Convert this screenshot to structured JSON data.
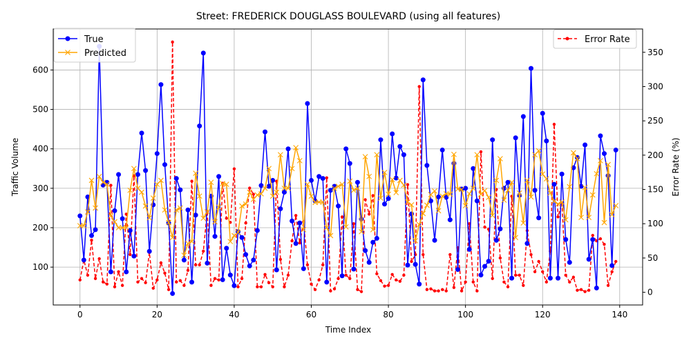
{
  "chart_data": {
    "type": "line",
    "title": "Street: FREDERICK DOUGLASS BOULEVARD (using all features)",
    "xlabel": "Time Index",
    "ylabel": "Traffic Volume",
    "y2label": "Error Rate (%)",
    "xlim": [
      -6.95,
      145.95
    ],
    "ylim": [
      4,
      704
    ],
    "y2lim": [
      -18.5,
      384
    ],
    "xticks": [
      0,
      20,
      40,
      60,
      80,
      100,
      120,
      140
    ],
    "yticks": [
      100,
      200,
      300,
      400,
      500,
      600
    ],
    "y2ticks": [
      0,
      50,
      100,
      150,
      200,
      250,
      300,
      350
    ],
    "grid": true,
    "legend_left": "upper-left",
    "legend_right": "upper-right",
    "series": [
      {
        "name": "True",
        "axis": "left",
        "color": "#0000ff",
        "marker": "circle",
        "linestyle": "solid",
        "values": [
          230,
          118,
          278,
          180,
          195,
          660,
          308,
          315,
          88,
          243,
          335,
          223,
          88,
          193,
          128,
          335,
          440,
          345,
          140,
          258,
          388,
          563,
          360,
          212,
          33,
          325,
          296,
          118,
          245,
          62,
          232,
          458,
          643,
          110,
          280,
          178,
          330,
          68,
          148,
          80,
          53,
          190,
          175,
          132,
          103,
          118,
          193,
          307,
          443,
          305,
          320,
          93,
          248,
          290,
          400,
          217,
          160,
          212,
          96,
          515,
          320,
          268,
          330,
          325,
          62,
          295,
          305,
          255,
          78,
          400,
          363,
          95,
          315,
          222,
          142,
          112,
          163,
          173,
          423,
          260,
          274,
          438,
          326,
          406,
          385,
          105,
          235,
          107,
          57,
          575,
          358,
          268,
          168,
          278,
          397,
          277,
          220,
          363,
          94,
          298,
          300,
          145,
          350,
          268,
          80,
          102,
          115,
          423,
          168,
          197,
          300,
          315,
          72,
          428,
          282,
          482,
          160,
          604,
          295,
          225,
          490,
          420,
          72,
          310,
          72,
          336,
          170,
          112,
          352,
          378,
          305,
          410,
          120,
          170,
          47,
          433,
          388,
          332,
          104,
          397
        ]
      },
      {
        "name": "Predicted",
        "axis": "left",
        "color": "#ffa500",
        "marker": "x",
        "linestyle": "solid",
        "values": [
          205,
          205,
          240,
          320,
          250,
          330,
          315,
          310,
          230,
          215,
          200,
          200,
          200,
          295,
          350,
          300,
          290,
          255,
          225,
          275,
          310,
          320,
          245,
          213,
          175,
          245,
          250,
          130,
          160,
          165,
          338,
          280,
          224,
          240,
          315,
          215,
          252,
          312,
          310,
          165,
          180,
          188,
          255,
          260,
          290,
          272,
          283,
          286,
          300,
          350,
          280,
          290,
          385,
          300,
          300,
          350,
          403,
          370,
          195,
          310,
          280,
          264,
          265,
          265,
          200,
          180,
          300,
          305,
          310,
          202,
          318,
          295,
          300,
          190,
          380,
          330,
          195,
          385,
          275,
          340,
          285,
          322,
          289,
          320,
          308,
          265,
          258,
          167,
          208,
          236,
          257,
          284,
          293,
          243,
          280,
          286,
          285,
          386,
          298,
          297,
          256,
          286,
          300,
          385,
          285,
          294,
          277,
          231,
          320,
          375,
          270,
          295,
          315,
          175,
          288,
          212,
          320,
          278,
          385,
          395,
          336,
          324,
          288,
          267,
          260,
          265,
          220,
          304,
          390,
          375,
          226,
          302,
          226,
          283,
          337,
          370,
          213,
          360,
          233,
          256
        ]
      },
      {
        "name": "Error Rate",
        "axis": "right",
        "color": "#ff0000",
        "marker": "dot",
        "linestyle": "dashed",
        "values": [
          18,
          47,
          25,
          76,
          20,
          49,
          15,
          12,
          156,
          8,
          30,
          10,
          114,
          55,
          170,
          15,
          20,
          14,
          58,
          6,
          18,
          43,
          28,
          4,
          365,
          15,
          17,
          10,
          32,
          162,
          40,
          40,
          60,
          118,
          10,
          20,
          18,
          159,
          108,
          102,
          180,
          8,
          20,
          101,
          152,
          143,
          8,
          8,
          26,
          14,
          8,
          162,
          48,
          8,
          25,
          75,
          112,
          72,
          103,
          40,
          12,
          4,
          18,
          40,
          167,
          2,
          5,
          20,
          110,
          25,
          20,
          100,
          4,
          1,
          135,
          114,
          141,
          27,
          17,
          9,
          10,
          26,
          18,
          16,
          25,
          157,
          45,
          55,
          300,
          55,
          4,
          5,
          2,
          2,
          4,
          2,
          55,
          7,
          65,
          2,
          15,
          100,
          15,
          2,
          205,
          95,
          92,
          20,
          150,
          50,
          15,
          8,
          140,
          25,
          25,
          10,
          90,
          55,
          30,
          45,
          30,
          15,
          60,
          245,
          110,
          130,
          25,
          15,
          22,
          3,
          4,
          1,
          3,
          83,
          75,
          78,
          70,
          10,
          30,
          45
        ]
      }
    ]
  }
}
